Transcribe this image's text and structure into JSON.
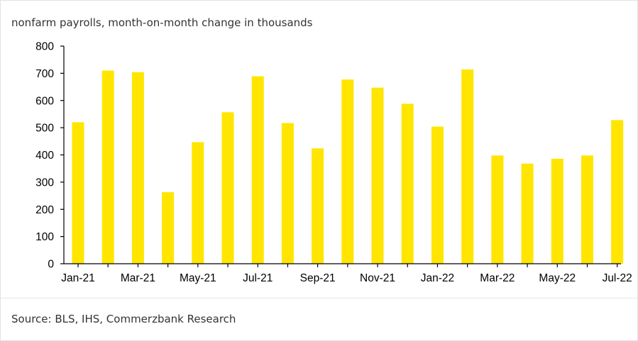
{
  "chart_data": {
    "type": "bar",
    "subtitle": "nonfarm payrolls, month-on-month change in thousands",
    "source": "Source: BLS, IHS, Commerzbank Research",
    "bar_color": "#FFE500",
    "axis_color": "#000000",
    "categories": [
      "Jan-21",
      "Feb-21",
      "Mar-21",
      "Apr-21",
      "May-21",
      "Jun-21",
      "Jul-21",
      "Aug-21",
      "Sep-21",
      "Oct-21",
      "Nov-21",
      "Dec-21",
      "Jan-22",
      "Feb-22",
      "Mar-22",
      "Apr-22",
      "May-22",
      "Jun-22",
      "Jul-22"
    ],
    "x_tick_labels": [
      "Jan-21",
      "Mar-21",
      "May-21",
      "Jul-21",
      "Sep-21",
      "Nov-21",
      "Jan-22",
      "Mar-22",
      "May-22",
      "Jul-22"
    ],
    "values": [
      520,
      710,
      704,
      263,
      447,
      557,
      689,
      517,
      424,
      677,
      647,
      588,
      504,
      714,
      398,
      368,
      386,
      398,
      528
    ],
    "ylim": [
      0,
      800
    ],
    "y_ticks": [
      0,
      100,
      200,
      300,
      400,
      500,
      600,
      700,
      800
    ],
    "grid": false,
    "legend": "none"
  }
}
